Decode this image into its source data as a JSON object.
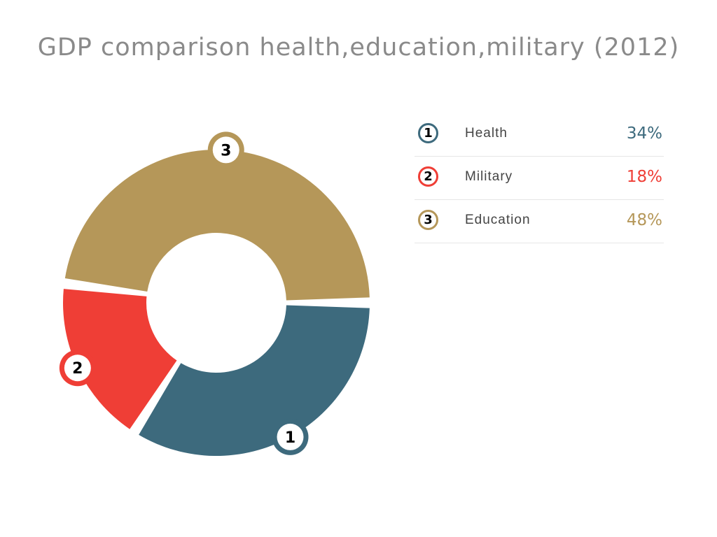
{
  "chart_data": {
    "type": "pie",
    "title": "GDP comparison health,education,military (2012)",
    "categories": [
      "Health",
      "Military",
      "Education"
    ],
    "values": [
      34,
      18,
      48
    ],
    "value_labels": [
      "34%",
      "18%",
      "48%"
    ],
    "slice_numbers": [
      "1",
      "2",
      "3"
    ],
    "colors": [
      "#3d6a7d",
      "#ef3e36",
      "#b59759"
    ],
    "legend_position": "right"
  }
}
